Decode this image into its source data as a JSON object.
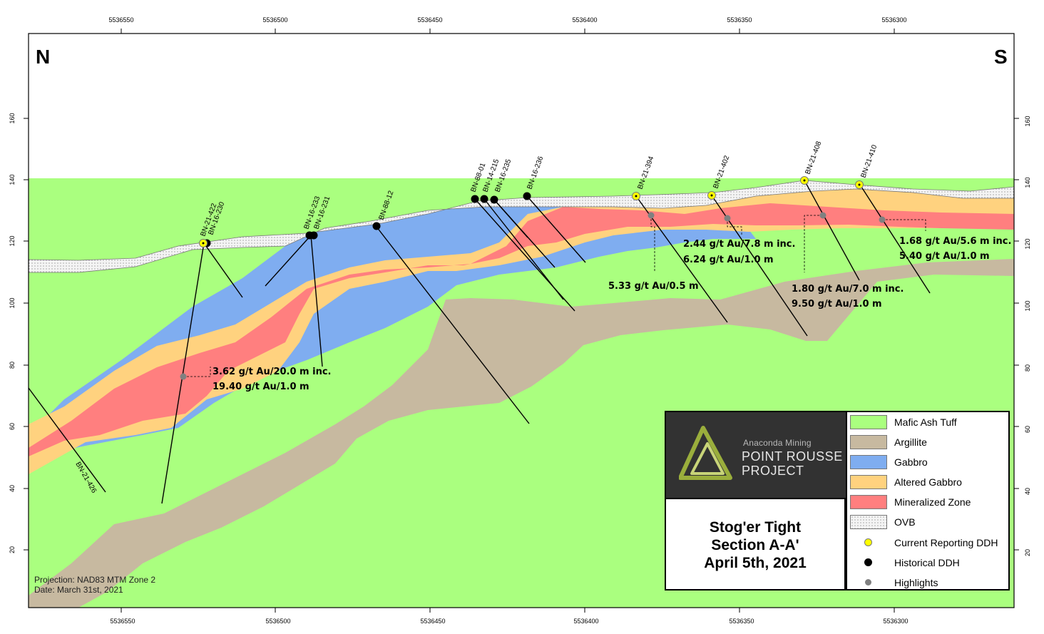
{
  "map": {
    "north_label": "N",
    "south_label": "S",
    "top_axis_labels": [
      "5536550",
      "5536500",
      "5536450",
      "5536400",
      "5536350",
      "5536300"
    ],
    "bottom_axis_labels": [
      "5536550",
      "5536500",
      "5536450",
      "5536400",
      "5536350",
      "5536300"
    ],
    "elevation_labels": [
      "160",
      "140",
      "120",
      "100",
      "80",
      "60",
      "40",
      "20"
    ],
    "drill_holes": [
      {
        "name": "BN-21-422",
        "type": "current"
      },
      {
        "name": "BN-16-230",
        "type": "historical"
      },
      {
        "name": "BN-16-233",
        "type": "historical"
      },
      {
        "name": "BN-16-231",
        "type": "historical"
      },
      {
        "name": "BN-88-12",
        "type": "historical"
      },
      {
        "name": "BN-88-01",
        "type": "historical"
      },
      {
        "name": "BN-14-215",
        "type": "historical"
      },
      {
        "name": "BN-16-235",
        "type": "historical"
      },
      {
        "name": "BN-16-236",
        "type": "historical"
      },
      {
        "name": "BN-21-394",
        "type": "current"
      },
      {
        "name": "BN-21-402",
        "type": "current"
      },
      {
        "name": "BN-21-408",
        "type": "current"
      },
      {
        "name": "BN-21-410",
        "type": "current"
      },
      {
        "name": "BN-21-426",
        "type": "current"
      }
    ],
    "highlights": [
      {
        "line1": "3.62 g/t Au/20.0 m inc.",
        "line2": "19.40 g/t Au/1.0 m"
      },
      {
        "line1": "5.33 g/t Au/0.5 m",
        "line2": ""
      },
      {
        "line1": "2.44 g/t Au/7.8 m inc.",
        "line2": "6.24 g/t Au/1.0 m"
      },
      {
        "line1": "1.80 g/t Au/7.0 m inc.",
        "line2": "9.50 g/t Au/1.0 m"
      },
      {
        "line1": "1.68 g/t Au/5.6 m inc.",
        "line2": "5.40 g/t Au/1.0 m"
      }
    ]
  },
  "colors": {
    "mafic_ash_tuff": "#aaff7f",
    "argillite": "#c7b9a0",
    "gabbro": "#7fadf0",
    "altered_gabbro": "#ffd27f",
    "mineralized_zone": "#ff7f7f",
    "ovb": "#f2f2f2",
    "current_ddh": "#ffff00",
    "historical_ddh": "#000000",
    "highlights": "#808080"
  },
  "logo": {
    "company": "Anaconda Mining",
    "project_line1": "POINT ROUSSE",
    "project_line2": "PROJECT"
  },
  "title": {
    "line1": "Stog'er Tight",
    "line2": "Section A-A'",
    "line3": "April 5th, 2021"
  },
  "legend": [
    {
      "label": "Mafic Ash Tuff",
      "kind": "swatch"
    },
    {
      "label": "Argillite",
      "kind": "swatch"
    },
    {
      "label": "Gabbro",
      "kind": "swatch"
    },
    {
      "label": "Altered Gabbro",
      "kind": "swatch"
    },
    {
      "label": "Mineralized Zone",
      "kind": "swatch"
    },
    {
      "label": "OVB",
      "kind": "pattern"
    },
    {
      "label": "Current Reporting DDH",
      "kind": "current"
    },
    {
      "label": "Historical DDH",
      "kind": "historical"
    },
    {
      "label": "Highlights",
      "kind": "highlight"
    }
  ],
  "footnote": {
    "projection": "Projection: NAD83 MTM Zone 2",
    "date": "Date: March 31st, 2021"
  }
}
